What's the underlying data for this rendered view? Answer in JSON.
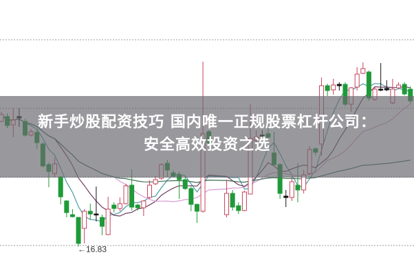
{
  "overlay": {
    "line1": "新手炒股配资技巧 国内唯一正规股票杠杆公司：",
    "line2": "安全高效投资之选"
  },
  "chart_data": {
    "type": "candlestick",
    "title": "",
    "xlabel": "",
    "ylabel": "",
    "ylim": [
      16.0,
      24.02
    ],
    "grid": "horizontal dotted",
    "annotations": [
      {
        "text": "←16.83",
        "value": 16.83,
        "meaning": "lowest price marker"
      }
    ],
    "colors": {
      "up": "#c8405a",
      "down": "#1e9a38",
      "doji": "#111111",
      "ma5": "#4a9aa0",
      "ma10": "#6b3d5e",
      "ma20": "#d99ad2",
      "ma60": "#3c6a52"
    },
    "moving_averages": [
      5,
      10,
      20,
      60
    ],
    "ohlc_fields": [
      "open",
      "high",
      "low",
      "close"
    ],
    "ohlc": [
      [
        20.48,
        20.76,
        20.46,
        20.68
      ],
      [
        20.62,
        20.72,
        20.28,
        20.36
      ],
      [
        20.38,
        20.86,
        20.02,
        20.52
      ],
      [
        20.58,
        20.86,
        20.32,
        20.62
      ],
      [
        20.48,
        20.56,
        20.04,
        20.08
      ],
      [
        20.08,
        20.26,
        20.04,
        20.18
      ],
      [
        20.16,
        20.26,
        19.68,
        19.86
      ],
      [
        19.82,
        19.88,
        19.14,
        19.18
      ],
      [
        19.22,
        19.28,
        18.56,
        19.02
      ],
      [
        18.96,
        19.42,
        18.86,
        19.24
      ],
      [
        18.86,
        18.88,
        18.06,
        18.28
      ],
      [
        18.16,
        18.18,
        17.68,
        17.82
      ],
      [
        17.76,
        17.92,
        17.68,
        17.7
      ],
      [
        17.68,
        17.68,
        16.83,
        16.92
      ],
      [
        17.36,
        17.92,
        16.92,
        17.86
      ],
      [
        17.86,
        18.08,
        17.62,
        17.78
      ],
      [
        17.78,
        18.58,
        17.56,
        17.76
      ],
      [
        17.68,
        17.76,
        17.16,
        17.42
      ],
      [
        17.18,
        18.28,
        17.16,
        17.92
      ],
      [
        18.04,
        18.12,
        17.82,
        17.94
      ],
      [
        17.94,
        18.26,
        17.86,
        18.08
      ],
      [
        18.08,
        18.66,
        18.06,
        18.6
      ],
      [
        18.62,
        19.08,
        17.88,
        17.98
      ],
      [
        18.04,
        18.08,
        17.88,
        17.96
      ],
      [
        17.96,
        18.18,
        17.72,
        18.16
      ],
      [
        18.26,
        18.76,
        18.22,
        18.62
      ],
      [
        18.66,
        18.88,
        18.62,
        18.78
      ],
      [
        18.82,
        19.26,
        18.78,
        19.22
      ],
      [
        19.26,
        19.36,
        18.86,
        19.06
      ],
      [
        18.98,
        19.06,
        18.86,
        18.88
      ],
      [
        18.92,
        19.02,
        18.22,
        18.78
      ],
      [
        18.78,
        18.86,
        18.48,
        18.52
      ],
      [
        18.52,
        18.58,
        17.86,
        18.06
      ],
      [
        18.06,
        18.08,
        17.52,
        17.86
      ],
      [
        17.86,
        22.22,
        17.82,
        20.12
      ],
      [
        20.18,
        20.22,
        19.82,
        19.86
      ],
      null,
      null,
      [
        17.76,
        18.78,
        17.68,
        18.38
      ],
      [
        18.38,
        18.48,
        17.88,
        17.98
      ],
      [
        18.02,
        18.12,
        17.78,
        17.88
      ],
      [
        17.88,
        18.46,
        17.86,
        18.42
      ],
      [
        18.36,
        20.98,
        18.36,
        19.98
      ],
      [
        19.92,
        20.22,
        19.86,
        20.02
      ],
      [
        20.08,
        20.22,
        19.96,
        20.06
      ],
      [
        20.12,
        20.38,
        19.82,
        20.02
      ],
      [
        19.56,
        20.18,
        19.18,
        19.22
      ],
      [
        19.22,
        19.26,
        18.22,
        18.38
      ],
      [
        18.3,
        18.48,
        17.98,
        18.26
      ],
      [
        18.26,
        18.88,
        18.16,
        18.72
      ],
      [
        18.62,
        19.26,
        18.12,
        18.48
      ],
      [
        18.48,
        19.06,
        18.38,
        18.92
      ],
      [
        18.96,
        19.76,
        18.92,
        19.66
      ],
      [
        19.68,
        19.72,
        19.48,
        19.58
      ],
      [
        19.82,
        21.76,
        19.48,
        21.52
      ],
      [
        21.52,
        21.58,
        21.22,
        21.38
      ],
      [
        21.4,
        21.72,
        21.26,
        21.54
      ],
      [
        21.52,
        21.62,
        21.38,
        21.56
      ],
      [
        21.56,
        21.62,
        20.92,
        20.98
      ],
      [
        20.98,
        21.48,
        20.76,
        21.46
      ],
      [
        21.48,
        22.06,
        21.38,
        21.86
      ],
      [
        21.88,
        22.2,
        21.86,
        22.02
      ],
      [
        21.92,
        21.96,
        21.08,
        21.16
      ],
      [
        21.12,
        21.48,
        21.08,
        21.42
      ],
      [
        21.42,
        22.18,
        21.36,
        21.4
      ],
      [
        21.44,
        21.68,
        21.36,
        21.4
      ],
      [
        21.02,
        21.72,
        20.98,
        21.42
      ],
      [
        21.46,
        21.62,
        21.42,
        21.54
      ],
      [
        21.56,
        21.62,
        21.24,
        21.28
      ],
      [
        21.42,
        21.5,
        21.0,
        21.08
      ]
    ]
  }
}
